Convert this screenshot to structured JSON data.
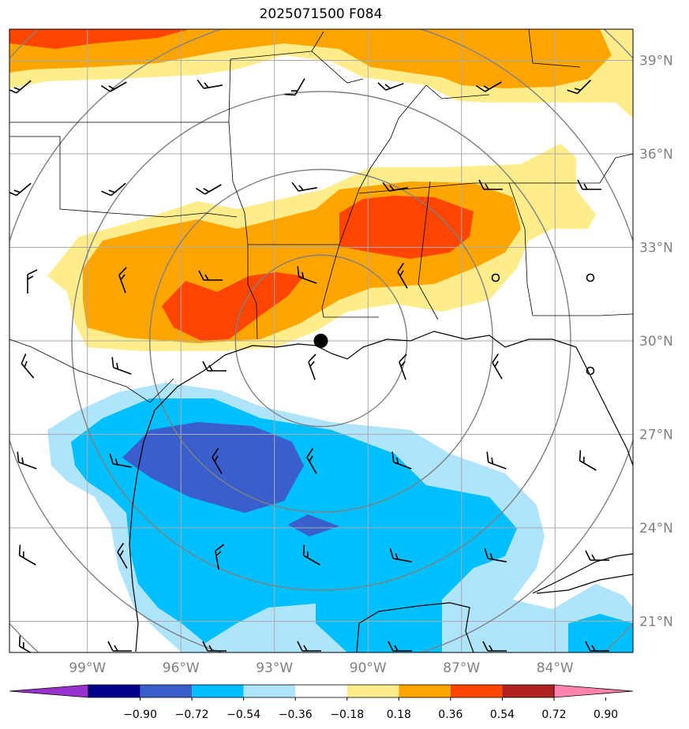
{
  "title": "2025071500 F084",
  "lat_labels": [
    "39°N",
    "36°N",
    "33°N",
    "30°N",
    "27°N",
    "24°N",
    "21°N"
  ],
  "lon_labels": [
    "99°W",
    "96°W",
    "93°W",
    "90°W",
    "87°W",
    "84°W"
  ],
  "colorbar": {
    "ticks": [
      "−0.90",
      "−0.72",
      "−0.54",
      "−0.36",
      "−0.18",
      "0.18",
      "0.36",
      "0.54",
      "0.72",
      "0.90"
    ],
    "colors": [
      "#9932cc",
      "#00008b",
      "#3a5fcd",
      "#00bfff",
      "#aee4fc",
      "#ffffff",
      "#ffec8b",
      "#ffa500",
      "#ff4500",
      "#b22222",
      "#ff82ab"
    ]
  },
  "map": {
    "projection": "PlateCarree",
    "lon_range": [
      -101.5,
      -81.5
    ],
    "lat_range": [
      20,
      40
    ],
    "marker": {
      "lon": -91.5,
      "lat": 30,
      "color": "#000000"
    },
    "range_ring_center": {
      "lon": -91.5,
      "lat": 30
    },
    "grid_color": "#aaaaaa",
    "ring_color": "#808080"
  }
}
